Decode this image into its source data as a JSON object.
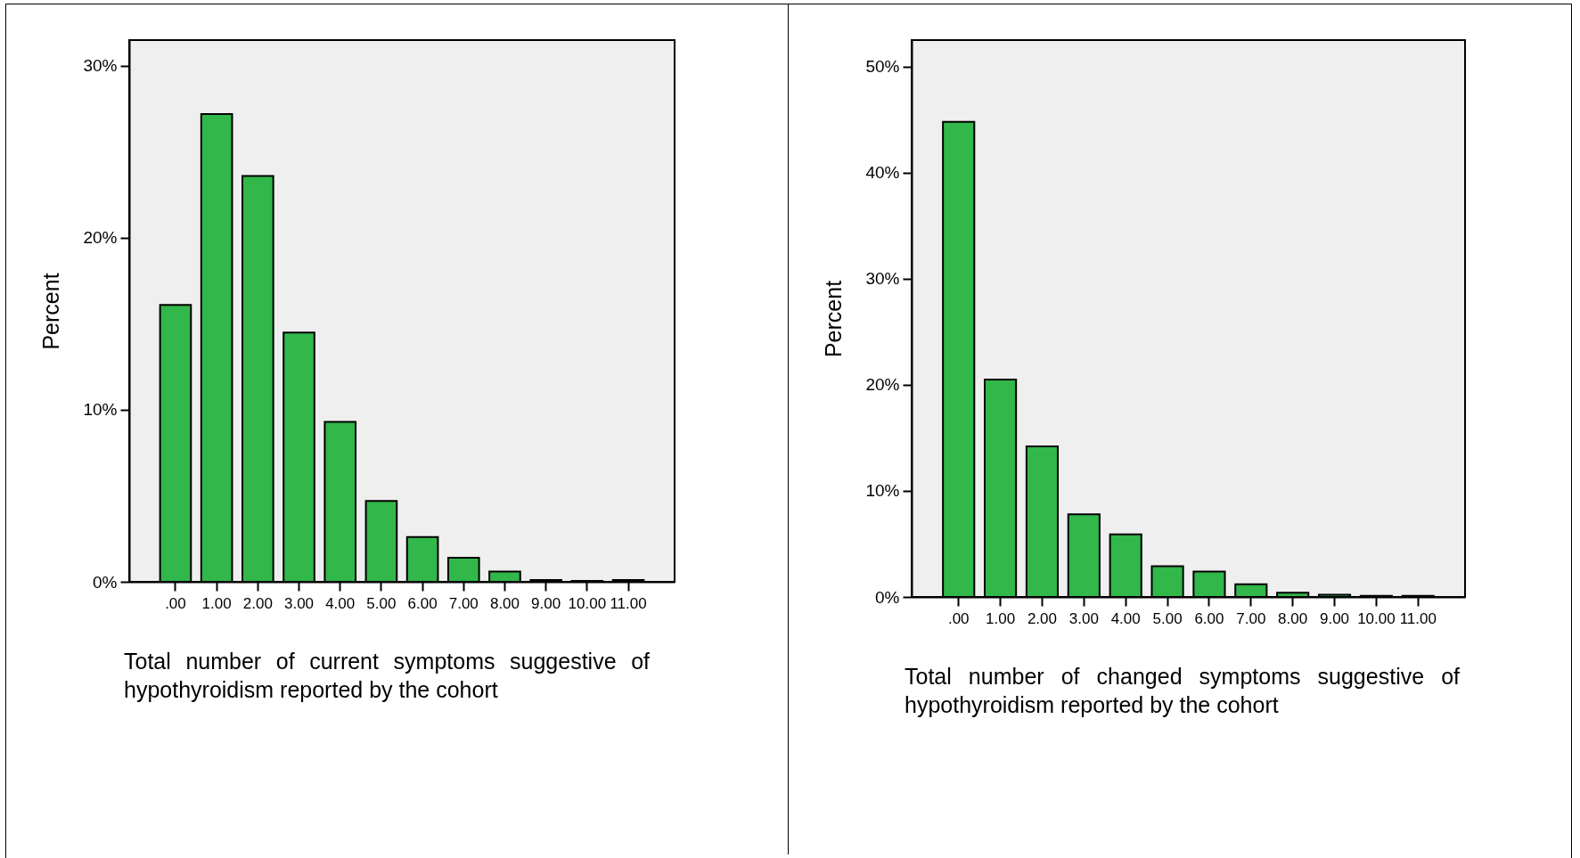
{
  "chart_data": [
    {
      "type": "bar",
      "xlabel": "Total number of current symptoms suggestive of hypothyroidism reported by the cohort",
      "ylabel": "Percent",
      "categories": [
        ".00",
        "1.00",
        "2.00",
        "3.00",
        "4.00",
        "5.00",
        "6.00",
        "7.00",
        "8.00",
        "9.00",
        "10.00",
        "11.00"
      ],
      "values": [
        16.1,
        27.2,
        23.6,
        14.5,
        9.3,
        4.7,
        2.6,
        1.4,
        0.6,
        0.1,
        0.05,
        0.1
      ],
      "color": "#31b74a",
      "ylim": [
        0,
        31.5
      ],
      "yticks": [
        {
          "value": 0,
          "label": "0%"
        },
        {
          "value": 10,
          "label": "10%"
        },
        {
          "value": 20,
          "label": "20%"
        },
        {
          "value": 30,
          "label": "30%"
        }
      ],
      "grid": false
    },
    {
      "type": "bar",
      "xlabel": "Total number of changed symptoms suggestive of hypothyroidism reported by the cohort",
      "ylabel": "Percent",
      "categories": [
        ".00",
        "1.00",
        "2.00",
        "3.00",
        "4.00",
        "5.00",
        "6.00",
        "7.00",
        "8.00",
        "9.00",
        "10.00",
        "11.00"
      ],
      "values": [
        44.8,
        20.5,
        14.2,
        7.8,
        5.9,
        2.9,
        2.4,
        1.2,
        0.4,
        0.2,
        0.1,
        0.1
      ],
      "color": "#31b74a",
      "ylim": [
        0,
        52.5
      ],
      "yticks": [
        {
          "value": 0,
          "label": "0%"
        },
        {
          "value": 10,
          "label": "10%"
        },
        {
          "value": 20,
          "label": "20%"
        },
        {
          "value": 30,
          "label": "30%"
        },
        {
          "value": 40,
          "label": "40%"
        },
        {
          "value": 50,
          "label": "50%"
        }
      ],
      "grid": false
    }
  ]
}
